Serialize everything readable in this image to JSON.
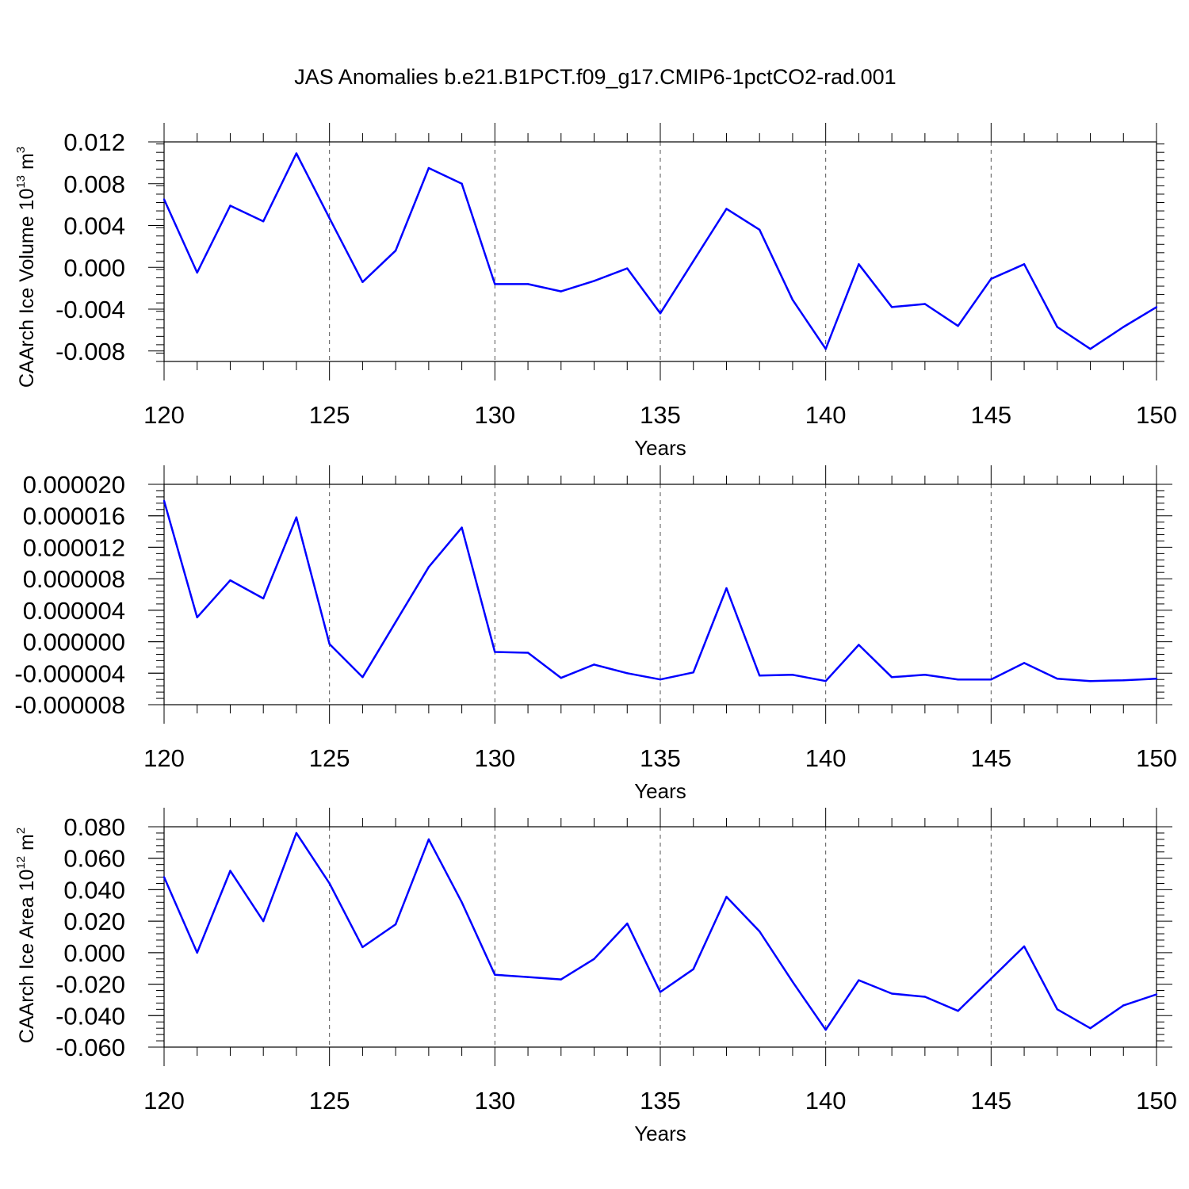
{
  "title": "JAS Anomalies b.e21.B1PCT.f09_g17.CMIP6-1pctCO2-rad.001",
  "chart_data": [
    {
      "type": "line",
      "xlabel": "Years",
      "ylabel": {
        "text": "CAArch Ice Volume 10",
        "exp": "13",
        "unit": " m",
        "unit_exp": "3"
      },
      "xlim": [
        120,
        150
      ],
      "ylim": [
        -0.009,
        0.012
      ],
      "xticks": [
        "120",
        "125",
        "130",
        "135",
        "140",
        "145",
        "150"
      ],
      "xtick_values": [
        120,
        125,
        130,
        135,
        140,
        145,
        150
      ],
      "yticks": [
        "0.012",
        "0.008",
        "0.004",
        "0.000",
        "-0.004",
        "-0.008"
      ],
      "ytick_values": [
        0.012,
        0.008,
        0.004,
        0.0,
        -0.004,
        -0.008
      ],
      "grid": "vertical dashed at major x ticks",
      "color": "#0000ff",
      "x": [
        120,
        121,
        122,
        123,
        124,
        125,
        126,
        127,
        128,
        129,
        130,
        131,
        132,
        133,
        134,
        135,
        136,
        137,
        138,
        139,
        140,
        141,
        142,
        143,
        144,
        145,
        146,
        147,
        148,
        149,
        150
      ],
      "values": [
        0.0065,
        -0.0005,
        0.0059,
        0.0044,
        0.0109,
        0.0047,
        -0.0014,
        0.0016,
        0.0095,
        0.008,
        -0.0016,
        -0.0016,
        -0.0023,
        -0.0013,
        -0.0001,
        -0.0044,
        0.0006,
        0.0056,
        0.0036,
        -0.0031,
        -0.0078,
        0.0003,
        -0.0038,
        -0.0035,
        -0.0056,
        -0.0011,
        0.0003,
        -0.0057,
        -0.0078,
        -0.0057,
        -0.0038
      ]
    },
    {
      "type": "line",
      "xlabel": "Years",
      "ylabel": null,
      "xlim": [
        120,
        150
      ],
      "ylim": [
        -8e-06,
        2e-05
      ],
      "xticks": [
        "120",
        "125",
        "130",
        "135",
        "140",
        "145",
        "150"
      ],
      "xtick_values": [
        120,
        125,
        130,
        135,
        140,
        145,
        150
      ],
      "yticks": [
        "0.000020",
        "0.000016",
        "0.000012",
        "0.000008",
        "0.000004",
        "0.000000",
        "-0.000004",
        "-0.000008"
      ],
      "ytick_values": [
        2e-05,
        1.6e-05,
        1.2e-05,
        8e-06,
        4e-06,
        0.0,
        -4e-06,
        -8e-06
      ],
      "grid": "vertical dashed at major x ticks",
      "color": "#0000ff",
      "x": [
        120,
        121,
        122,
        123,
        124,
        125,
        126,
        127,
        128,
        129,
        130,
        131,
        132,
        133,
        134,
        135,
        136,
        137,
        138,
        139,
        140,
        141,
        142,
        143,
        144,
        145,
        146,
        147,
        148,
        149,
        150
      ],
      "values": [
        1.79e-05,
        3.1e-06,
        7.8e-06,
        5.5e-06,
        1.58e-05,
        -3e-07,
        -4.5e-06,
        2.5e-06,
        9.5e-06,
        1.45e-05,
        -1.3e-06,
        -1.4e-06,
        -4.6e-06,
        -2.9e-06,
        -4e-06,
        -4.8e-06,
        -3.9e-06,
        6.8e-06,
        -4.3e-06,
        -4.2e-06,
        -5e-06,
        -4e-07,
        -4.5e-06,
        -4.2e-06,
        -4.8e-06,
        -4.8e-06,
        -2.7e-06,
        -4.7e-06,
        -5e-06,
        -4.9e-06,
        -4.7e-06
      ]
    },
    {
      "type": "line",
      "xlabel": "Years",
      "ylabel": {
        "text": "CAArch Ice Area 10",
        "exp": "12",
        "unit": " m",
        "unit_exp": "2"
      },
      "xlim": [
        120,
        150
      ],
      "ylim": [
        -0.06,
        0.08
      ],
      "xticks": [
        "120",
        "125",
        "130",
        "135",
        "140",
        "145",
        "150"
      ],
      "xtick_values": [
        120,
        125,
        130,
        135,
        140,
        145,
        150
      ],
      "yticks": [
        "0.080",
        "0.060",
        "0.040",
        "0.020",
        "0.000",
        "-0.020",
        "-0.040",
        "-0.060"
      ],
      "ytick_values": [
        0.08,
        0.06,
        0.04,
        0.02,
        0.0,
        -0.02,
        -0.04,
        -0.06
      ],
      "grid": "vertical dashed at major x ticks",
      "color": "#0000ff",
      "x": [
        120,
        121,
        122,
        123,
        124,
        125,
        126,
        127,
        128,
        129,
        130,
        131,
        132,
        133,
        134,
        135,
        136,
        137,
        138,
        139,
        140,
        141,
        142,
        143,
        144,
        145,
        146,
        147,
        148,
        149,
        150
      ],
      "values": [
        0.048,
        0.0,
        0.052,
        0.02,
        0.076,
        0.044,
        0.0035,
        0.018,
        0.072,
        0.032,
        -0.014,
        -0.0155,
        -0.017,
        -0.004,
        0.0185,
        -0.025,
        -0.0105,
        0.0355,
        0.0135,
        -0.0185,
        -0.049,
        -0.0175,
        -0.026,
        -0.028,
        -0.037,
        -0.0165,
        0.004,
        -0.036,
        -0.048,
        -0.0335,
        -0.0265
      ]
    }
  ]
}
